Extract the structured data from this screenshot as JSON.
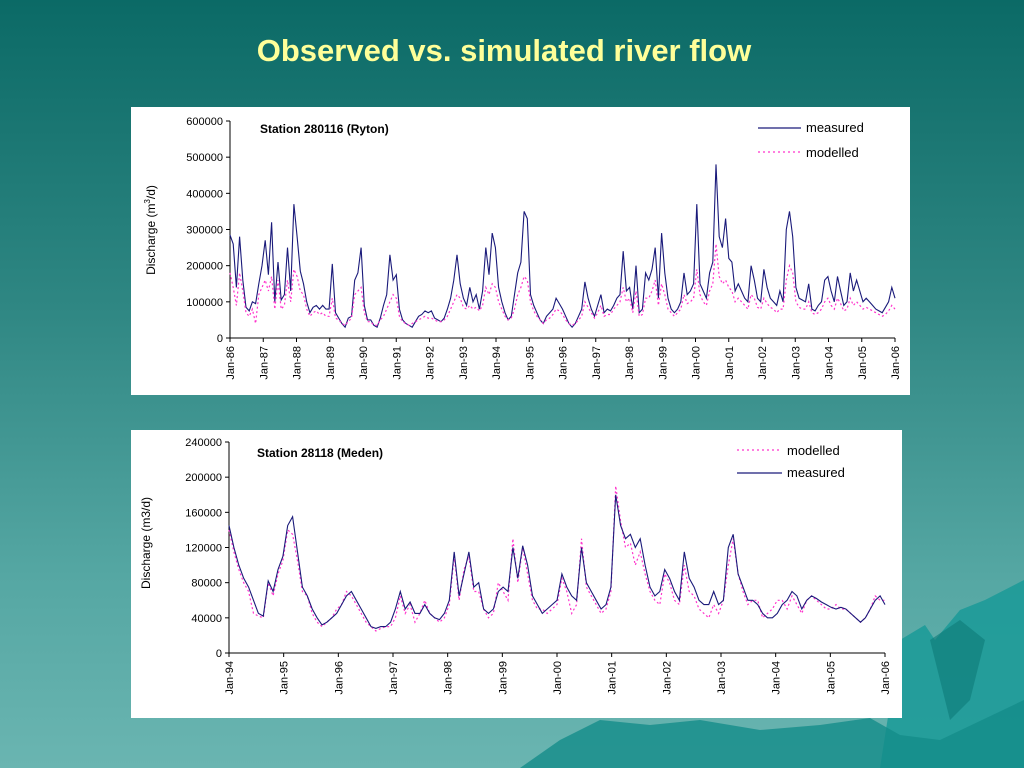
{
  "slide": {
    "title": "Observed vs. simulated river flow"
  },
  "colors": {
    "measured": "#1a1a7a",
    "modelled": "#ff33cc",
    "title": "#ffff99"
  },
  "chart_data": [
    {
      "type": "line",
      "title": "Station 280116 (Ryton)",
      "ylabel_main": "Discharge (m",
      "ylabel_sup": "3",
      "ylabel_tail": "/d)",
      "ylim": [
        0,
        600000
      ],
      "yticks": [
        "0",
        "100000",
        "200000",
        "300000",
        "400000",
        "500000",
        "600000"
      ],
      "xticks": [
        "Jan-86",
        "Jan-87",
        "Jan-88",
        "Jan-89",
        "Jan-90",
        "Jan-91",
        "Jan-92",
        "Jan-93",
        "Jan-94",
        "Jan-95",
        "Jan-96",
        "Jan-97",
        "Jan-98",
        "Jan-99",
        "Jan-00",
        "Jan-01",
        "Jan-02",
        "Jan-03",
        "Jan-04",
        "Jan-05",
        "Jan-06"
      ],
      "x_start": "Jan-86",
      "grid": false,
      "legend": "top-right",
      "series": [
        {
          "name": "measured",
          "style": "solid",
          "values": [
            285000,
            260000,
            140000,
            280000,
            160000,
            85000,
            75000,
            100000,
            95000,
            150000,
            200000,
            270000,
            175000,
            320000,
            100000,
            210000,
            105000,
            120000,
            250000,
            130000,
            370000,
            280000,
            185000,
            150000,
            100000,
            70000,
            85000,
            90000,
            80000,
            90000,
            80000,
            80000,
            205000,
            70000,
            55000,
            40000,
            30000,
            55000,
            60000,
            160000,
            180000,
            250000,
            90000,
            50000,
            50000,
            35000,
            30000,
            55000,
            90000,
            120000,
            230000,
            160000,
            175000,
            80000,
            50000,
            40000,
            35000,
            30000,
            45000,
            60000,
            65000,
            75000,
            70000,
            75000,
            55000,
            50000,
            45000,
            55000,
            80000,
            110000,
            160000,
            230000,
            150000,
            110000,
            90000,
            140000,
            100000,
            120000,
            80000,
            130000,
            250000,
            175000,
            290000,
            250000,
            140000,
            100000,
            70000,
            50000,
            60000,
            120000,
            180000,
            210000,
            350000,
            330000,
            120000,
            90000,
            70000,
            50000,
            40000,
            60000,
            70000,
            80000,
            110000,
            95000,
            80000,
            60000,
            40000,
            30000,
            40000,
            60000,
            80000,
            155000,
            110000,
            80000,
            60000,
            90000,
            120000,
            70000,
            80000,
            75000,
            90000,
            110000,
            120000,
            240000,
            130000,
            140000,
            80000,
            200000,
            70000,
            80000,
            180000,
            160000,
            190000,
            250000,
            110000,
            290000,
            180000,
            110000,
            80000,
            70000,
            80000,
            100000,
            180000,
            120000,
            130000,
            150000,
            370000,
            150000,
            130000,
            110000,
            180000,
            210000,
            480000,
            280000,
            250000,
            330000,
            220000,
            210000,
            130000,
            150000,
            130000,
            110000,
            100000,
            200000,
            160000,
            110000,
            100000,
            190000,
            140000,
            110000,
            100000,
            90000,
            130000,
            100000,
            300000,
            350000,
            280000,
            140000,
            110000,
            105000,
            100000,
            150000,
            80000,
            75000,
            90000,
            100000,
            160000,
            170000,
            130000,
            100000,
            170000,
            130000,
            90000,
            100000,
            180000,
            130000,
            160000,
            130000,
            100000,
            110000,
            100000,
            90000,
            80000,
            75000,
            70000,
            85000,
            100000,
            140000,
            110000
          ]
        },
        {
          "name": "modelled",
          "style": "dotted",
          "values": [
            180000,
            140000,
            90000,
            180000,
            130000,
            70000,
            60000,
            80000,
            40000,
            120000,
            140000,
            160000,
            130000,
            170000,
            80000,
            160000,
            80000,
            90000,
            160000,
            100000,
            190000,
            170000,
            130000,
            120000,
            80000,
            60000,
            70000,
            75000,
            65000,
            70000,
            60000,
            60000,
            110000,
            55000,
            50000,
            40000,
            35000,
            45000,
            55000,
            120000,
            130000,
            140000,
            70000,
            45000,
            45000,
            35000,
            35000,
            50000,
            60000,
            80000,
            100000,
            120000,
            110000,
            60000,
            45000,
            40000,
            35000,
            40000,
            45000,
            50000,
            55000,
            60000,
            55000,
            55000,
            50000,
            45000,
            45000,
            50000,
            60000,
            80000,
            100000,
            120000,
            110000,
            85000,
            80000,
            90000,
            80000,
            85000,
            75000,
            90000,
            140000,
            120000,
            150000,
            140000,
            100000,
            80000,
            60000,
            50000,
            55000,
            80000,
            120000,
            140000,
            170000,
            160000,
            100000,
            75000,
            60000,
            50000,
            40000,
            50000,
            55000,
            65000,
            80000,
            75000,
            65000,
            50000,
            40000,
            35000,
            40000,
            50000,
            60000,
            100000,
            85000,
            70000,
            55000,
            70000,
            90000,
            60000,
            65000,
            65000,
            80000,
            90000,
            100000,
            140000,
            100000,
            110000,
            70000,
            130000,
            60000,
            65000,
            110000,
            110000,
            130000,
            160000,
            90000,
            150000,
            120000,
            80000,
            70000,
            60000,
            70000,
            80000,
            120000,
            95000,
            100000,
            110000,
            190000,
            120000,
            100000,
            90000,
            130000,
            150000,
            260000,
            170000,
            150000,
            160000,
            140000,
            130000,
            100000,
            110000,
            100000,
            90000,
            80000,
            120000,
            110000,
            85000,
            80000,
            110000,
            95000,
            85000,
            80000,
            70000,
            80000,
            80000,
            160000,
            200000,
            180000,
            100000,
            85000,
            80000,
            80000,
            100000,
            70000,
            65000,
            70000,
            80000,
            100000,
            110000,
            90000,
            80000,
            110000,
            95000,
            75000,
            80000,
            110000,
            90000,
            100000,
            90000,
            80000,
            85000,
            80000,
            75000,
            70000,
            65000,
            60000,
            65000,
            75000,
            90000,
            80000
          ]
        }
      ]
    },
    {
      "type": "line",
      "title": "Station 28118 (Meden)",
      "ylabel": "Discharge (m3/d)",
      "ylim": [
        0,
        240000
      ],
      "yticks": [
        "0",
        "40000",
        "80000",
        "120000",
        "160000",
        "200000",
        "240000"
      ],
      "xticks": [
        "Jan-94",
        "Jan-95",
        "Jan-96",
        "Jan-97",
        "Jan-98",
        "Jan-99",
        "Jan-00",
        "Jan-01",
        "Jan-02",
        "Jan-03",
        "Jan-04",
        "Jan-05",
        "Jan-06"
      ],
      "x_start": "Jan-94",
      "grid": false,
      "legend": "top-right",
      "series": [
        {
          "name": "modelled",
          "style": "dotted",
          "values": [
            140000,
            115000,
            95000,
            80000,
            70000,
            45000,
            42000,
            40000,
            80000,
            65000,
            90000,
            105000,
            140000,
            135000,
            105000,
            70000,
            65000,
            45000,
            35000,
            30000,
            35000,
            40000,
            50000,
            55000,
            70000,
            65000,
            55000,
            45000,
            35000,
            30000,
            25000,
            28000,
            30000,
            30000,
            40000,
            65000,
            45000,
            55000,
            35000,
            45000,
            60000,
            45000,
            40000,
            35000,
            40000,
            55000,
            110000,
            60000,
            95000,
            110000,
            70000,
            70000,
            50000,
            40000,
            45000,
            80000,
            70000,
            60000,
            130000,
            80000,
            120000,
            90000,
            60000,
            50000,
            50000,
            45000,
            50000,
            55000,
            85000,
            70000,
            45000,
            55000,
            130000,
            75000,
            65000,
            55000,
            45000,
            50000,
            70000,
            190000,
            150000,
            120000,
            125000,
            100000,
            115000,
            90000,
            70000,
            60000,
            55000,
            90000,
            80000,
            60000,
            55000,
            100000,
            70000,
            65000,
            50000,
            45000,
            40000,
            55000,
            45000,
            60000,
            100000,
            130000,
            90000,
            70000,
            55000,
            60000,
            60000,
            40000,
            45000,
            50000,
            60000,
            60000,
            50000,
            65000,
            55000,
            45000,
            60000,
            65000,
            60000,
            55000,
            50000,
            50000,
            55000,
            50000,
            50000,
            45000,
            40000,
            35000,
            40000,
            50000,
            65000,
            60000,
            60000
          ]
        },
        {
          "name": "measured",
          "style": "solid",
          "values": [
            145000,
            120000,
            100000,
            85000,
            75000,
            60000,
            45000,
            42000,
            82000,
            70000,
            95000,
            110000,
            145000,
            155000,
            115000,
            75000,
            65000,
            50000,
            40000,
            32000,
            35000,
            40000,
            45000,
            55000,
            65000,
            70000,
            60000,
            50000,
            40000,
            30000,
            28000,
            30000,
            30000,
            35000,
            50000,
            70000,
            50000,
            58000,
            45000,
            45000,
            55000,
            45000,
            40000,
            38000,
            45000,
            60000,
            115000,
            65000,
            90000,
            115000,
            75000,
            80000,
            50000,
            45000,
            50000,
            70000,
            75000,
            70000,
            120000,
            85000,
            122000,
            100000,
            65000,
            55000,
            45000,
            50000,
            55000,
            60000,
            90000,
            75000,
            65000,
            60000,
            120000,
            80000,
            70000,
            60000,
            50000,
            55000,
            75000,
            180000,
            145000,
            130000,
            135000,
            120000,
            130000,
            100000,
            75000,
            65000,
            70000,
            95000,
            85000,
            70000,
            60000,
            115000,
            85000,
            75000,
            60000,
            55000,
            55000,
            70000,
            55000,
            60000,
            120000,
            135000,
            90000,
            75000,
            60000,
            60000,
            55000,
            45000,
            40000,
            40000,
            45000,
            55000,
            60000,
            70000,
            65000,
            50000,
            60000,
            65000,
            62000,
            58000,
            55000,
            52000,
            50000,
            52000,
            50000,
            45000,
            40000,
            35000,
            40000,
            50000,
            60000,
            65000,
            55000
          ]
        }
      ]
    }
  ]
}
